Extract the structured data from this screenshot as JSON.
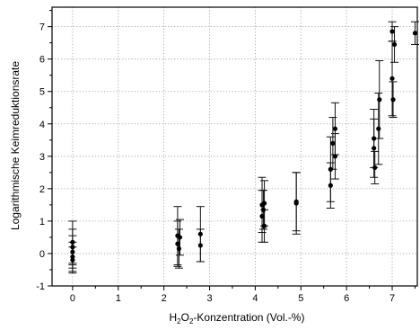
{
  "chart_data": {
    "type": "scatter",
    "title": "",
    "xlabel": {
      "prefix": "H",
      "sub1": "2",
      "mid": "O",
      "sub2": "2",
      "suffix": "-Konzentration (Vol.-%)"
    },
    "ylabel": "Logarithmische Keimreduktionsrate",
    "xlim": [
      -0.45,
      7.55
    ],
    "ylim": [
      -1,
      7.6
    ],
    "xticks": [
      0,
      1,
      2,
      3,
      4,
      5,
      6,
      7
    ],
    "yticks": [
      -1,
      0,
      1,
      2,
      3,
      4,
      5,
      6,
      7
    ],
    "grid": true,
    "points": [
      {
        "x": 0.0,
        "y": 0.35,
        "err": 0.65
      },
      {
        "x": 0.0,
        "y": 0.2,
        "err": 0.55
      },
      {
        "x": 0.0,
        "y": 0.05,
        "err": 0.5
      },
      {
        "x": 0.0,
        "y": -0.1,
        "err": 0.45
      },
      {
        "x": 0.0,
        "y": -0.2,
        "err": 0.4
      },
      {
        "x": 2.3,
        "y": 0.55,
        "err": 0.9
      },
      {
        "x": 2.3,
        "y": 0.3,
        "err": 0.7
      },
      {
        "x": 2.33,
        "y": 0.15,
        "err": 0.6
      },
      {
        "x": 2.35,
        "y": 0.5,
        "err": 0.55
      },
      {
        "x": 2.8,
        "y": 0.6,
        "err": 0.85
      },
      {
        "x": 2.8,
        "y": 0.25,
        "err": 0.5
      },
      {
        "x": 4.15,
        "y": 1.5,
        "err": 0.85
      },
      {
        "x": 4.15,
        "y": 1.15,
        "err": 0.8
      },
      {
        "x": 4.18,
        "y": 1.35,
        "err": 0.6
      },
      {
        "x": 4.2,
        "y": 1.55,
        "err": 0.7
      },
      {
        "x": 4.2,
        "y": 0.85,
        "err": 0.5
      },
      {
        "x": 4.9,
        "y": 1.6,
        "err": 0.9
      },
      {
        "x": 4.9,
        "y": 1.55,
        "err": 0.95
      },
      {
        "x": 5.65,
        "y": 2.6,
        "err": 1.0
      },
      {
        "x": 5.65,
        "y": 2.1,
        "err": 0.7
      },
      {
        "x": 5.7,
        "y": 3.4,
        "err": 0.8
      },
      {
        "x": 5.75,
        "y": 3.85,
        "err": 0.8
      },
      {
        "x": 5.75,
        "y": 3.0,
        "err": 0.7
      },
      {
        "x": 6.6,
        "y": 3.55,
        "err": 0.9
      },
      {
        "x": 6.6,
        "y": 3.25,
        "err": 0.9
      },
      {
        "x": 6.62,
        "y": 2.65,
        "err": 0.5
      },
      {
        "x": 6.7,
        "y": 3.85,
        "err": 1.1
      },
      {
        "x": 6.72,
        "y": 4.75,
        "err": 1.2
      },
      {
        "x": 7.0,
        "y": 6.85,
        "err": 0.3
      },
      {
        "x": 7.0,
        "y": 5.4,
        "err": 1.15
      },
      {
        "x": 7.02,
        "y": 4.75,
        "err": 0.55
      },
      {
        "x": 7.05,
        "y": 6.45,
        "err": 0.55
      },
      {
        "x": 7.5,
        "y": 6.8,
        "err": 0.35
      }
    ]
  }
}
